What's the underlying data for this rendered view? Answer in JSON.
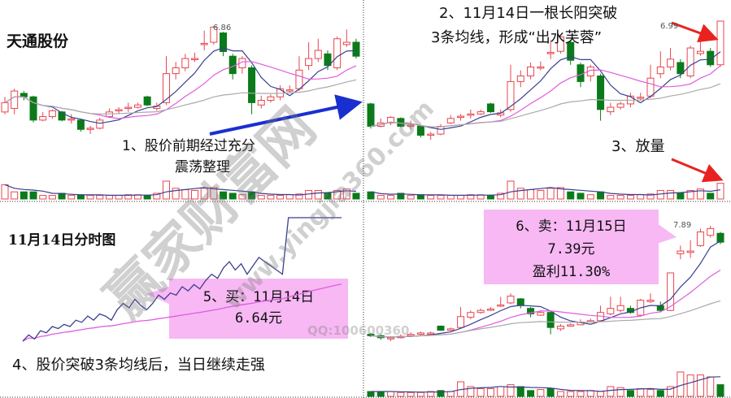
{
  "colors": {
    "up": "#e8464e",
    "down": "#0b7a1a",
    "ma5": "#3a3f8f",
    "ma10": "#e05ce0",
    "ma30": "#aaaaaa",
    "intraday_price": "#3a3f8f",
    "intraday_avg": "#e05ce0",
    "callout_bg": "#f7b8f3",
    "arrow_blue": "#1a2fd0",
    "arrow_red": "#e8231f"
  },
  "top_left": {
    "title": "天通股份",
    "peak_label": "6.86",
    "note_line1": "1、股价前期经过充分",
    "note_line2": "震荡整理",
    "candles": [
      [
        6.12,
        6.2,
        6.25,
        6.1
      ],
      [
        6.15,
        6.3,
        6.32,
        6.1
      ],
      [
        6.28,
        6.25,
        6.3,
        6.22
      ],
      [
        6.25,
        6.05,
        6.26,
        6.03
      ],
      [
        6.05,
        6.08,
        6.12,
        6.04
      ],
      [
        6.08,
        6.13,
        6.14,
        6.06
      ],
      [
        6.12,
        6.05,
        6.13,
        6.04
      ],
      [
        6.05,
        6.06,
        6.1,
        6.02
      ],
      [
        6.05,
        5.97,
        6.06,
        5.95
      ],
      [
        5.97,
        5.98,
        6.0,
        5.93
      ],
      [
        5.98,
        6.05,
        6.07,
        5.97
      ],
      [
        6.08,
        6.12,
        6.15,
        6.07
      ],
      [
        6.13,
        6.14,
        6.16,
        6.1
      ],
      [
        6.15,
        6.16,
        6.2,
        6.12
      ],
      [
        6.16,
        6.18,
        6.2,
        6.15
      ],
      [
        6.25,
        6.18,
        6.26,
        6.17
      ],
      [
        6.15,
        6.17,
        6.2,
        6.13
      ],
      [
        6.2,
        6.45,
        6.6,
        6.18
      ],
      [
        6.45,
        6.5,
        6.55,
        6.4
      ],
      [
        6.5,
        6.58,
        6.62,
        6.47
      ],
      [
        6.57,
        6.58,
        6.63,
        6.55
      ],
      [
        6.7,
        6.71,
        6.82,
        6.65
      ],
      [
        6.72,
        6.85,
        6.86,
        6.7
      ],
      [
        6.8,
        6.64,
        6.81,
        6.6
      ],
      [
        6.6,
        6.45,
        6.62,
        6.4
      ],
      [
        6.5,
        6.58,
        6.6,
        6.45
      ],
      [
        6.5,
        6.2,
        6.52,
        6.1
      ],
      [
        6.18,
        6.22,
        6.26,
        6.15
      ],
      [
        6.22,
        6.25,
        6.27,
        6.2
      ],
      [
        6.25,
        6.32,
        6.35,
        6.22
      ],
      [
        6.3,
        6.31,
        6.35,
        6.28
      ],
      [
        6.32,
        6.48,
        6.6,
        6.3
      ],
      [
        6.52,
        6.58,
        6.72,
        6.48
      ],
      [
        6.58,
        6.65,
        6.75,
        6.55
      ],
      [
        6.62,
        6.52,
        6.65,
        6.48
      ],
      [
        6.5,
        6.75,
        6.77,
        6.48
      ],
      [
        6.7,
        6.72,
        6.83,
        6.68
      ],
      [
        6.72,
        6.6,
        6.75,
        6.58
      ]
    ],
    "volumes": [
      2,
      1,
      1,
      1,
      0.5,
      0.5,
      0.8,
      0.5,
      0.6,
      0.5,
      0.5,
      0.5,
      0.5,
      0.6,
      0.6,
      0.5,
      0.8,
      2.5,
      1.5,
      1.3,
      1.2,
      1.5,
      1.6,
      1.0,
      0.8,
      0.6,
      1.0,
      0.5,
      0.5,
      0.5,
      0.6,
      0.7,
      1.2,
      1.2,
      0.8,
      1.2,
      1.4,
      0.8
    ]
  },
  "top_right": {
    "note2_line1": "2、11月14日一根长阳突破",
    "note2_line2": "3条均线，形成“出水芙蓉”",
    "note3": "3、放量",
    "peak_label": "6.99",
    "breakout_candle": [
      6.6,
      6.99,
      6.99,
      6.58
    ],
    "breakout_volume": 2.2
  },
  "bottom_left": {
    "title": "11月14日分时图",
    "prices": [
      6.4,
      6.43,
      6.41,
      6.45,
      6.44,
      6.47,
      6.46,
      6.48,
      6.47,
      6.5,
      6.49,
      6.52,
      6.5,
      6.53,
      6.52,
      6.5,
      6.55,
      6.58,
      6.56,
      6.6,
      6.57,
      6.55,
      6.58,
      6.62,
      6.6,
      6.63,
      6.62,
      6.66,
      6.64,
      6.67,
      6.65,
      6.69,
      6.72,
      6.7,
      6.75,
      6.78,
      6.74,
      6.77,
      6.72,
      6.76,
      6.8,
      6.78,
      6.76,
      6.74,
      6.72,
      6.99,
      6.99,
      6.99,
      6.99,
      6.99,
      6.99,
      6.99,
      6.99,
      6.99,
      6.99
    ],
    "callout_line1": "5、买：11月14日",
    "callout_line2": "6.64元",
    "note4": "4、股价突破3条均线后，当日继续走强"
  },
  "bottom_right": {
    "peak_label": "7.89",
    "callout_line1": "6、卖：11月15日",
    "callout_line2": "7.39元",
    "callout_line3": "盈利11.30%",
    "candles": [
      [
        6.3,
        6.28,
        6.32,
        6.26
      ],
      [
        6.28,
        6.25,
        6.3,
        6.22
      ],
      [
        6.24,
        6.25,
        6.27,
        6.2
      ],
      [
        6.25,
        6.27,
        6.3,
        6.24
      ],
      [
        6.28,
        6.3,
        6.33,
        6.27
      ],
      [
        6.3,
        6.32,
        6.34,
        6.29
      ],
      [
        6.31,
        6.32,
        6.34,
        6.3
      ],
      [
        6.42,
        6.36,
        6.43,
        6.35
      ],
      [
        6.36,
        6.38,
        6.4,
        6.35
      ],
      [
        6.4,
        6.56,
        6.7,
        6.38
      ],
      [
        6.55,
        6.62,
        6.65,
        6.52
      ],
      [
        6.62,
        6.65,
        6.68,
        6.6
      ],
      [
        6.66,
        6.67,
        6.7,
        6.64
      ],
      [
        6.72,
        6.73,
        6.85,
        6.7
      ],
      [
        6.76,
        6.86,
        6.9,
        6.74
      ],
      [
        6.82,
        6.72,
        6.83,
        6.68
      ],
      [
        6.68,
        6.6,
        6.7,
        6.55
      ],
      [
        6.58,
        6.62,
        6.65,
        6.57
      ],
      [
        6.62,
        6.4,
        6.63,
        6.3
      ],
      [
        6.38,
        6.42,
        6.45,
        6.35
      ],
      [
        6.42,
        6.44,
        6.46,
        6.42
      ],
      [
        6.44,
        6.48,
        6.52,
        6.43
      ],
      [
        6.5,
        6.5,
        6.53,
        6.48
      ],
      [
        6.5,
        6.62,
        6.72,
        6.48
      ],
      [
        6.6,
        6.68,
        6.85,
        6.58
      ],
      [
        6.65,
        6.72,
        6.85,
        6.62
      ],
      [
        6.68,
        6.62,
        6.72,
        6.6
      ],
      [
        6.58,
        6.8,
        6.82,
        6.56
      ],
      [
        6.78,
        6.8,
        6.9,
        6.76
      ],
      [
        6.72,
        6.65,
        6.78,
        6.62
      ],
      [
        6.65,
        7.2,
        7.2,
        6.64
      ],
      [
        7.48,
        7.52,
        7.6,
        7.4
      ],
      [
        7.5,
        7.52,
        7.68,
        7.42
      ],
      [
        7.6,
        7.8,
        7.85,
        7.58
      ],
      [
        7.75,
        7.85,
        7.89,
        7.72
      ],
      [
        7.78,
        7.65,
        7.8,
        7.62
      ]
    ],
    "volumes": [
      0.5,
      0.5,
      0.5,
      0.4,
      0.4,
      0.4,
      0.5,
      0.6,
      0.5,
      1.5,
      1.0,
      0.8,
      0.8,
      1.0,
      1.2,
      1.0,
      0.6,
      0.7,
      0.8,
      0.5,
      0.5,
      0.5,
      0.6,
      0.5,
      1.0,
      0.9,
      0.6,
      0.8,
      0.7,
      0.6,
      1.0,
      2.5,
      2.2,
      2.2,
      2.0,
      1.2
    ]
  },
  "watermark": {
    "main": "赢家财富网",
    "url": "www.yingjia360.com",
    "qq": "QQ:100600360"
  },
  "chart_data": [
    {
      "type": "candlestick",
      "title": "天通股份",
      "series": [
        "top_left.candles"
      ],
      "annotations": [
        "6.86"
      ]
    },
    {
      "type": "candlestick",
      "annotations": [
        "6.99"
      ]
    },
    {
      "type": "line",
      "title": "11月14日分时图"
    },
    {
      "type": "candlestick",
      "annotations": [
        "7.89"
      ]
    }
  ]
}
